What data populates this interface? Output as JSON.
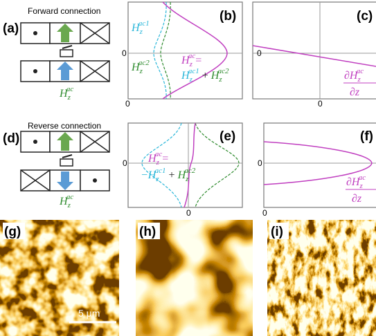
{
  "panels": {
    "a": {
      "label": "(a)",
      "heading": "Forward connection",
      "field": {
        "base": "H",
        "sub": "z",
        "sup": "ac"
      }
    },
    "b": {
      "label": "(b)",
      "zero_y": "0",
      "zero_x": "0",
      "field1": {
        "base": "H",
        "sub": "z",
        "sup": "ac1"
      },
      "field2": {
        "base": "H",
        "sub": "z",
        "sup": "ac2"
      },
      "sum": {
        "lhs": {
          "base": "H",
          "sub": "z",
          "sup": "ac"
        },
        "eq": "=",
        "t1": {
          "base": "H",
          "sub": "z",
          "sup": "ac1"
        },
        "op": "+",
        "t2": {
          "base": "H",
          "sub": "z",
          "sup": "ac2"
        }
      }
    },
    "c": {
      "label": "(c)",
      "zero_y": "0",
      "zero_x": "0",
      "grad": {
        "num": "∂H",
        "sub": "z",
        "sup": "ac",
        "den": "∂z"
      }
    },
    "d": {
      "label": "(d)",
      "heading": "Reverse connection",
      "field": {
        "base": "H",
        "sub": "z",
        "sup": "ac"
      }
    },
    "e": {
      "label": "(e)",
      "zero_y": "0",
      "zero_x": "0",
      "sum": {
        "lhs": {
          "base": "H",
          "sub": "z",
          "sup": "ac"
        },
        "eq": "=",
        "t1": {
          "base": "−H",
          "sub": "z",
          "sup": "ac1"
        },
        "op": "+",
        "t2": {
          "base": "H",
          "sub": "z",
          "sup": "ac2"
        }
      }
    },
    "f": {
      "label": "(f)",
      "zero_y": "0",
      "zero_x": "0",
      "grad": {
        "num": "∂H",
        "sub": "z",
        "sup": "ac",
        "den": "∂z"
      }
    },
    "g": {
      "label": "(g)",
      "scale": "5 μm"
    },
    "h": {
      "label": "(h)"
    },
    "i": {
      "label": "(i)"
    }
  }
}
